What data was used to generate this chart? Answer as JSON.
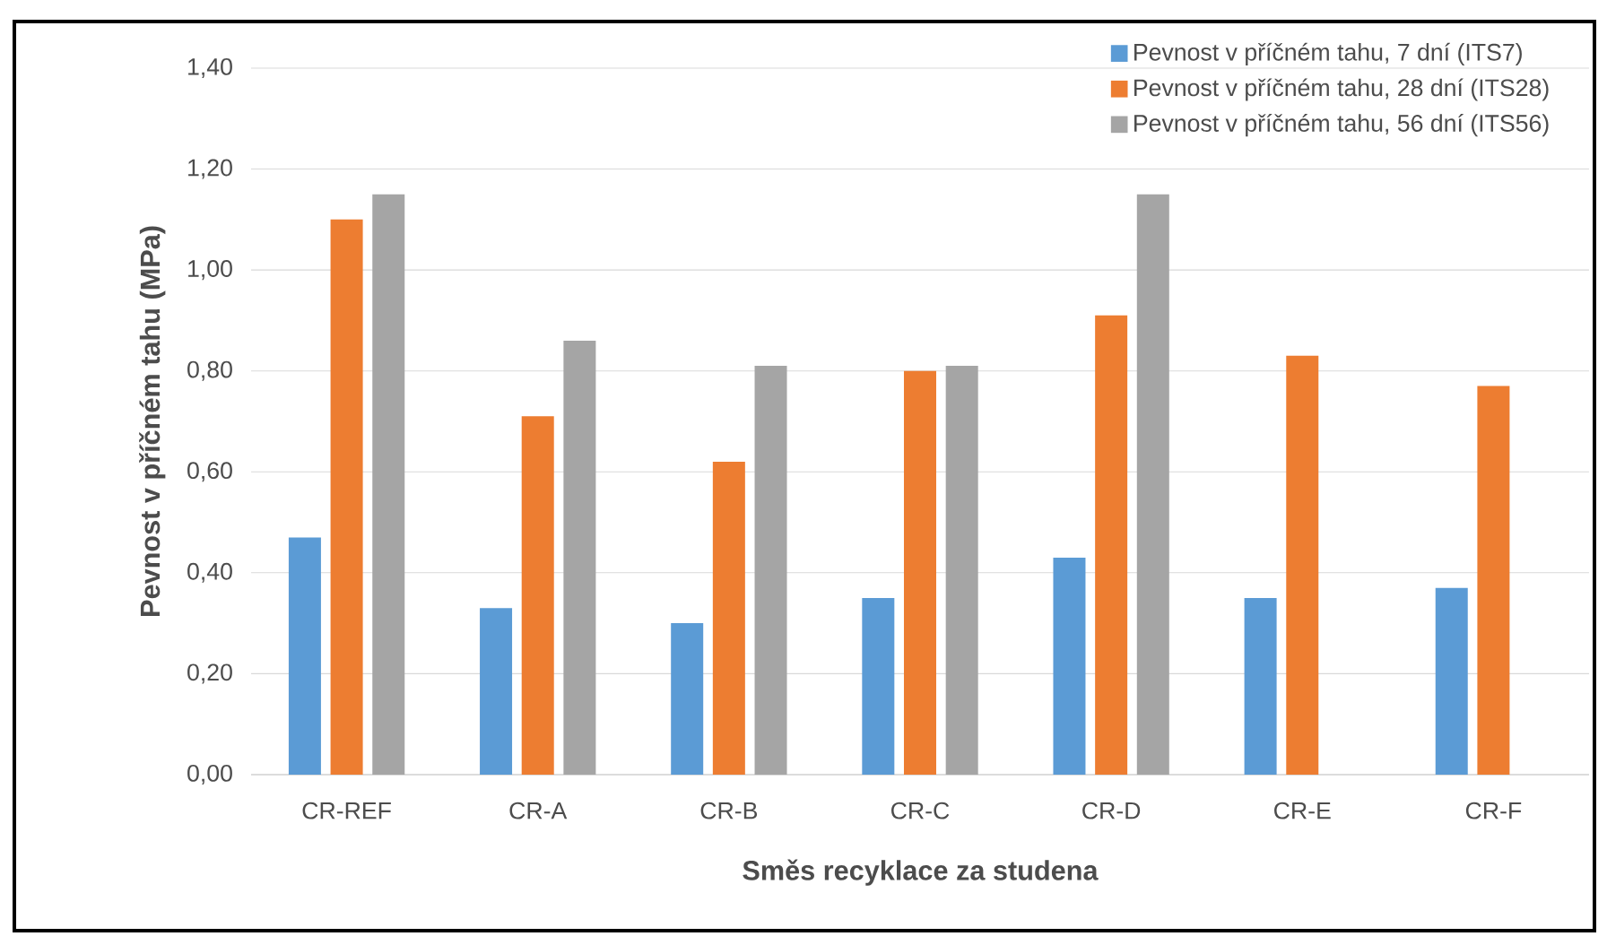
{
  "chart_data": {
    "type": "bar",
    "xlabel": "Směs recyklace za studena",
    "ylabel": "Pevnost v příčném tahu (MPa)",
    "categories": [
      "CR-REF",
      "CR-A",
      "CR-B",
      "CR-C",
      "CR-D",
      "CR-E",
      "CR-F"
    ],
    "series": [
      {
        "name": "Pevnost v příčném tahu, 7 dní (ITS7)",
        "color": "#5b9bd5",
        "values": [
          0.47,
          0.33,
          0.3,
          0.35,
          0.43,
          0.35,
          0.37
        ]
      },
      {
        "name": "Pevnost v příčném tahu, 28 dní (ITS28)",
        "color": "#ed7d31",
        "values": [
          1.1,
          0.71,
          0.62,
          0.8,
          0.91,
          0.83,
          0.77
        ]
      },
      {
        "name": "Pevnost v příčném tahu, 56 dní (ITS56)",
        "color": "#a5a5a5",
        "values": [
          1.15,
          0.86,
          0.81,
          0.81,
          1.15,
          null,
          null
        ]
      }
    ],
    "ylim": [
      0,
      1.4
    ],
    "yticks": [
      {
        "value": 0,
        "label": "0,00"
      },
      {
        "value": 0.2,
        "label": "0,20"
      },
      {
        "value": 0.4,
        "label": "0,40"
      },
      {
        "value": 0.6,
        "label": "0,60"
      },
      {
        "value": 0.8,
        "label": "0,80"
      },
      {
        "value": 1.0,
        "label": "1,00"
      },
      {
        "value": 1.2,
        "label": "1,20"
      },
      {
        "value": 1.4,
        "label": "1,40"
      }
    ],
    "grid": "y",
    "legend": "top right"
  }
}
